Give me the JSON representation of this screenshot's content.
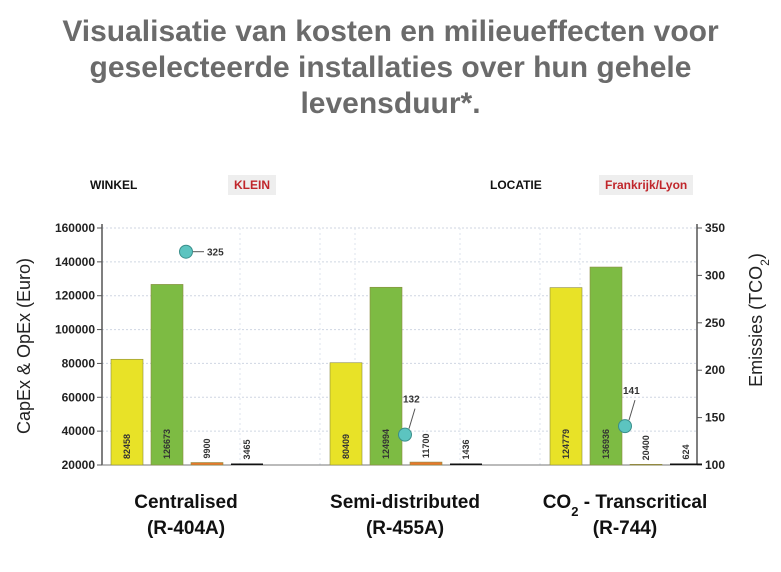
{
  "title": "Visualisatie van kosten en milieueffecten voor geselecteerde installaties over hun gehele levensduur*.",
  "meta": {
    "store_label": "WINKEL",
    "store_value": "KLEIN",
    "location_label": "LOCATIE",
    "location_value": "Frankrijk/Lyon"
  },
  "colors": {
    "yellow": "#e8e227",
    "green": "#7dbb43",
    "orange": "#e8782d",
    "black": "#111111",
    "marker": "#5cc4c0"
  },
  "chart_data": {
    "type": "bar",
    "ylabel": "CapEx & OpEx (Euro)",
    "y2label": "Emissies (TCO2)",
    "ylim": [
      20000,
      160000
    ],
    "y2lim": [
      100,
      350
    ],
    "yticks": [
      "20000",
      "40000",
      "60000",
      "80000",
      "100000",
      "120000",
      "140000",
      "160000"
    ],
    "y2ticks": [
      "100",
      "150",
      "200",
      "250",
      "300",
      "350"
    ],
    "categories": [
      {
        "line1": "Centralised",
        "line2": "(R-404A)"
      },
      {
        "line1": "Semi-distributed",
        "line2": "(R-455A)"
      },
      {
        "line1": "CO2 - Transcritical",
        "line1_main": "CO",
        "line1_sub": "2",
        "line1_rest": " - Transcritical",
        "line2": "(R-744)"
      }
    ],
    "series_colors": [
      "yellow",
      "green",
      "orange",
      "black"
    ],
    "values": [
      [
        82458,
        126673,
        9900,
        3465
      ],
      [
        80409,
        124994,
        11700,
        1436
      ],
      [
        124779,
        136936,
        20400,
        624
      ]
    ],
    "emissions": [
      325,
      132,
      141
    ]
  }
}
